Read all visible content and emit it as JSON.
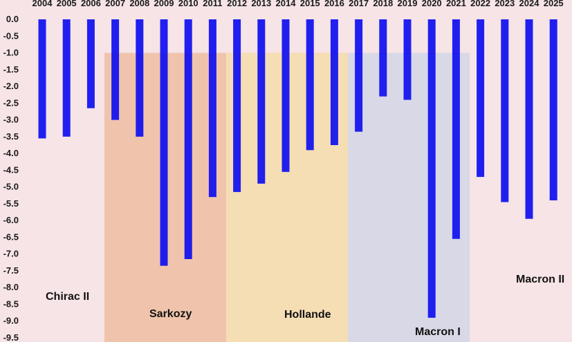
{
  "chart_data": {
    "type": "bar",
    "title": "",
    "xlabel": "",
    "ylabel": "",
    "categories": [
      "2004",
      "2005",
      "2006",
      "2007",
      "2008",
      "2009",
      "2010",
      "2011",
      "2012",
      "2013",
      "2014",
      "2015",
      "2016",
      "2017",
      "2018",
      "2019",
      "2020",
      "2021",
      "2022",
      "2023",
      "2024",
      "2025"
    ],
    "series": [
      {
        "values": [
          -3.55,
          -3.5,
          -2.65,
          -3.0,
          -3.5,
          -7.35,
          -7.15,
          -5.3,
          -5.15,
          -4.9,
          -4.55,
          -3.9,
          -3.75,
          -3.35,
          -2.3,
          -2.4,
          -8.9,
          -6.55,
          -4.7,
          -5.45,
          -5.95,
          -5.4
        ]
      }
    ],
    "ylim": [
      -9.5,
      0
    ],
    "yticks": [
      "0.0",
      "-0.5",
      "-1.0",
      "-1.5",
      "-2.0",
      "-2.5",
      "-3.0",
      "-3.5",
      "-4.0",
      "-4.5",
      "-5.0",
      "-5.5",
      "-6.0",
      "-6.5",
      "-7.0",
      "-7.5",
      "-8.0",
      "-8.5",
      "-9.0",
      "-9.5"
    ],
    "bar_color": "#1010f0",
    "grid": false,
    "periods": [
      {
        "label": "Chirac II",
        "color": "#f6e4e6"
      },
      {
        "label": "Sarkozy",
        "start": "2007",
        "end": "2012",
        "color": "#f0c4ac"
      },
      {
        "label": "Hollande",
        "start": "2012",
        "end": "2017",
        "color": "#f5ddb4"
      },
      {
        "label": "Macron I",
        "start": "2017",
        "end": "2022",
        "color": "#d8d8e6"
      },
      {
        "label": "Macron II",
        "color": "#f6e4e6"
      }
    ]
  }
}
